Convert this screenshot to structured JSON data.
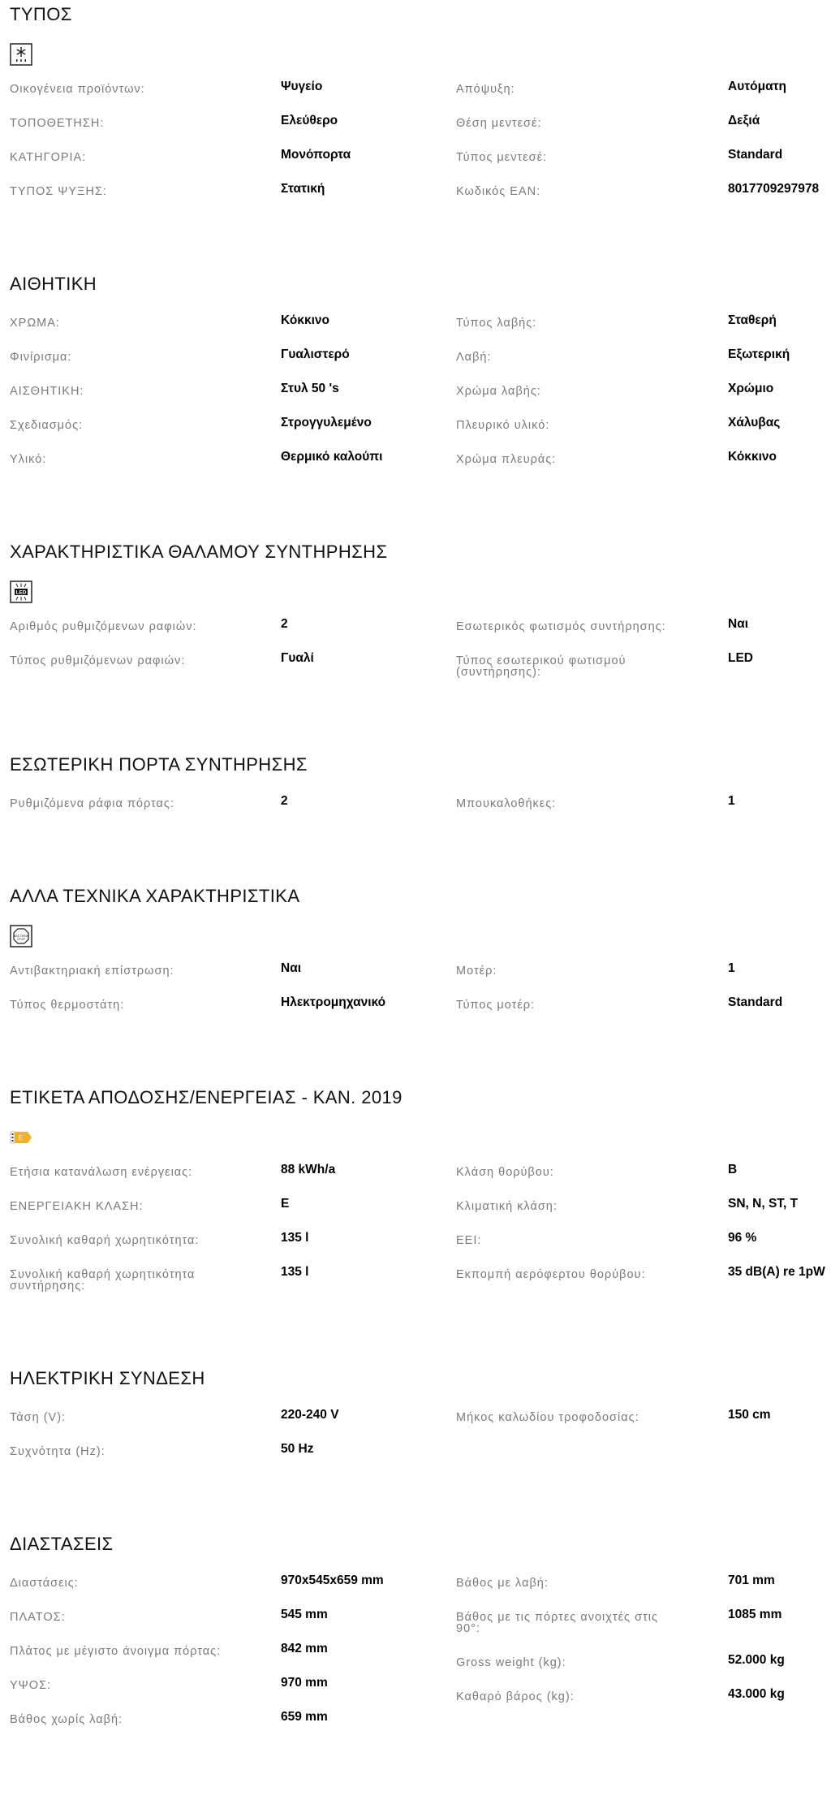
{
  "sections": [
    {
      "title": "ΤΥΠΟΣ",
      "icon": "snowflake-defrost-icon",
      "left": [
        {
          "label": "Οικογένεια προϊόντων:",
          "value": "Ψυγείο"
        },
        {
          "label": "ΤΟΠΟΘΕΤΗΣΗ:",
          "value": "Ελεύθερο"
        },
        {
          "label": "ΚΑΤΗΓΟΡΙΑ:",
          "value": "Μονόπορτα"
        },
        {
          "label": "ΤΥΠΟΣ ΨΥΞΗΣ:",
          "value": "Στατική"
        }
      ],
      "right": [
        {
          "label": "Απόψυξη:",
          "value": "Αυτόματη"
        },
        {
          "label": "Θέση μεντεσέ:",
          "value": "Δεξιά"
        },
        {
          "label": "Τύπος μεντεσέ:",
          "value": "Standard"
        },
        {
          "label": "Κωδικός EAN:",
          "value": "8017709297978"
        }
      ]
    },
    {
      "title": "ΑΙΘΗΤΙΚΗ",
      "icon": null,
      "left": [
        {
          "label": "ΧΡΩΜΑ:",
          "value": "Κόκκινο"
        },
        {
          "label": "Φινίρισμα:",
          "value": "Γυαλιστερό"
        },
        {
          "label": "ΑΙΣΘΗΤΙΚΗ:",
          "value": "Στυλ 50 's"
        },
        {
          "label": "Σχεδιασμός:",
          "value": "Στρογγυλεμένο"
        },
        {
          "label": "Υλικό:",
          "value": "Θερμικό καλούπι"
        }
      ],
      "right": [
        {
          "label": "Τύπος λαβής:",
          "value": "Σταθερή"
        },
        {
          "label": "Λαβή:",
          "value": "Εξωτερική"
        },
        {
          "label": "Χρώμα λαβής:",
          "value": "Χρώμιο"
        },
        {
          "label": "Πλευρικό υλικό:",
          "value": "Χάλυβας"
        },
        {
          "label": "Χρώμα πλευράς:",
          "value": "Κόκκινο"
        }
      ]
    },
    {
      "title": "ΧΑΡΑΚΤΗΡΙΣΤΙΚΑ ΘΑΛΑΜΟΥ ΣΥΝΤΗΡΗΣΗΣ",
      "icon": "led-icon",
      "left": [
        {
          "label": "Αριθμός ρυθμιζόμενων ραφιών:",
          "value": "2"
        },
        {
          "label": "Τύπος ρυθμιζόμενων ραφιών:",
          "value": "Γυαλί"
        }
      ],
      "right": [
        {
          "label": "Εσωτερικός φωτισμός συντήρησης:",
          "value": "Ναι"
        },
        {
          "label": "Τύπος εσωτερικού φωτισμού\n(συντήρησης):",
          "value": "LED"
        }
      ]
    },
    {
      "title": "ΕΣΩΤΕΡΙΚΗ ΠΟΡΤΑ ΣΥΝΤΗΡΗΣΗΣ",
      "icon": null,
      "left": [
        {
          "label": "Ρυθμιζόμενα ράφια πόρτας:",
          "value": "2"
        }
      ],
      "right": [
        {
          "label": "Μπουκαλοθήκες:",
          "value": "1"
        }
      ]
    },
    {
      "title": "ΑΛΛΑ ΤΕΧΝΙΚΑ ΧΑΡΑΚΤΗΡΙΣΤΙΚΑ",
      "icon": "bacteria-stop-icon",
      "left": [
        {
          "label": "Αντιβακτηριακή επίστρωση:",
          "value": "Ναι"
        },
        {
          "label": "Τύπος θερμοστάτη:",
          "value": "Ηλεκτρομηχανικό"
        }
      ],
      "right": [
        {
          "label": "Μοτέρ:",
          "value": "1"
        },
        {
          "label": "Τύπος μοτέρ:",
          "value": "Standard"
        }
      ]
    },
    {
      "title": "ΕΤΙΚΕΤΑ ΑΠΟΔΟΣΗΣ/ΕΝΕΡΓΕΙΑΣ - ΚΑΝ. 2019",
      "icon": "energy-label-icon",
      "left": [
        {
          "label": "Ετήσια κατανάλωση ενέργειας:",
          "value": "88 kWh/a"
        },
        {
          "label": "ΕΝΕΡΓΕΙΑΚΗ ΚΛΑΣΗ:",
          "value": "E"
        },
        {
          "label": "Συνολική καθαρή χωρητικότητα:",
          "value": "135 l"
        },
        {
          "label": "Συνολική καθαρή χωρητικότητα\nσυντήρησης:",
          "value": "135 l"
        }
      ],
      "right": [
        {
          "label": "Κλάση θορύβου:",
          "value": "B"
        },
        {
          "label": "Κλιματική κλάση:",
          "value": "SN, N, ST, T"
        },
        {
          "label": "EEI:",
          "value": "96 %"
        },
        {
          "label": "Εκπομπή αερόφερτου θορύβου:",
          "value": "35 dB(A) re 1pW"
        }
      ]
    },
    {
      "title": "ΗΛΕΚΤΡΙΚΗ ΣΥΝΔΕΣΗ",
      "icon": null,
      "left": [
        {
          "label": "Τάση (V):",
          "value": "220-240 V"
        },
        {
          "label": "Συχνότητα (Hz):",
          "value": "50 Hz"
        }
      ],
      "right": [
        {
          "label": "Μήκος καλωδίου τροφοδοσίας:",
          "value": "150 cm"
        }
      ]
    },
    {
      "title": "ΔΙΑΣΤΑΣΕΙΣ",
      "icon": null,
      "left": [
        {
          "label": "Διαστάσεις:",
          "value": "970x545x659 mm"
        },
        {
          "label": "ΠΛΑΤΟΣ:",
          "value": "545 mm"
        },
        {
          "label": "Πλάτος με μέγιστο άνοιγμα πόρτας:",
          "value": "842 mm"
        },
        {
          "label": "ΥΨΟΣ:",
          "value": "970 mm"
        },
        {
          "label": "Βάθος χωρίς λαβή:",
          "value": "659 mm"
        }
      ],
      "right": [
        {
          "label": "Βάθος με λαβή:",
          "value": "701 mm"
        },
        {
          "label": "Βάθος με τις πόρτες ανοιχτές στις\n90°:",
          "value": "1085 mm"
        },
        {
          "label": "Gross weight (kg):",
          "value": "52.000 kg"
        },
        {
          "label": "Καθαρό βάρος (kg):",
          "value": "43.000 kg"
        }
      ]
    }
  ],
  "colors": {
    "label": "#7a7a7a",
    "value": "#000000",
    "energy_tag": "#f0b030"
  }
}
